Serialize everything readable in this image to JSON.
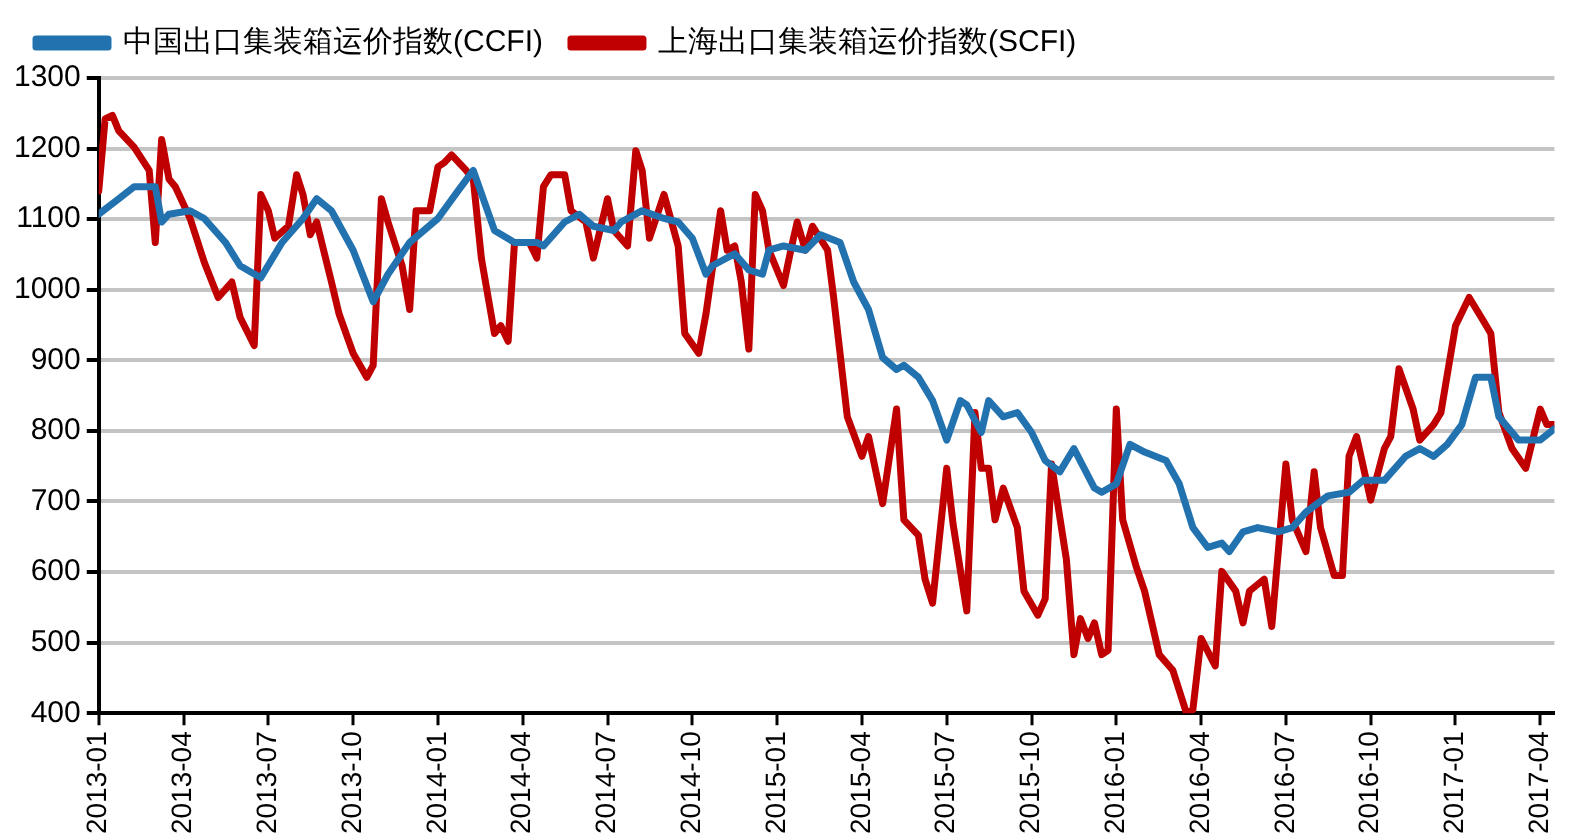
{
  "chart_data": {
    "type": "line",
    "xlim": [
      "2013-01",
      "2017-04-16"
    ],
    "ylim": [
      400,
      1300
    ],
    "xticks": [
      "2013-01",
      "2013-04",
      "2013-07",
      "2013-10",
      "2014-01",
      "2014-04",
      "2014-07",
      "2014-10",
      "2015-01",
      "2015-04",
      "2015-07",
      "2015-10",
      "2016-01",
      "2016-04",
      "2016-07",
      "2016-10",
      "2017-01",
      "2017-04"
    ],
    "yticks": [
      400,
      500,
      600,
      700,
      800,
      900,
      1000,
      1100,
      1200,
      1300
    ],
    "grid": "y",
    "legend": "top",
    "marker": "none",
    "line_style": "solid",
    "series": [
      {
        "name": "中国出口集装箱运价指数(CCFI)",
        "color": "#2372b0",
        "x": [
          "2013-01-01",
          "2013-01-23",
          "2013-02-08",
          "2013-03-01",
          "2013-03-08",
          "2013-03-16",
          "2013-04-08",
          "2013-04-23",
          "2013-05-16",
          "2013-06-01",
          "2013-06-23",
          "2013-07-16",
          "2013-08-08",
          "2013-08-23",
          "2013-09-08",
          "2013-10-01",
          "2013-10-23",
          "2013-11-08",
          "2013-12-01",
          "2014-01-01",
          "2014-01-23",
          "2014-02-08",
          "2014-03-01",
          "2014-03-23",
          "2014-04-16",
          "2014-04-23",
          "2014-05-16",
          "2014-06-01",
          "2014-06-16",
          "2014-07-08",
          "2014-07-16",
          "2014-08-08",
          "2014-09-01",
          "2014-09-16",
          "2014-10-01",
          "2014-10-16",
          "2014-10-23",
          "2014-11-16",
          "2014-12-01",
          "2014-12-16",
          "2014-12-23",
          "2015-01-08",
          "2015-02-01",
          "2015-02-16",
          "2015-03-08",
          "2015-03-23",
          "2015-04-08",
          "2015-04-23",
          "2015-05-08",
          "2015-05-16",
          "2015-06-01",
          "2015-06-16",
          "2015-07-01",
          "2015-07-16",
          "2015-07-23",
          "2015-08-08",
          "2015-08-16",
          "2015-09-01",
          "2015-09-16",
          "2015-10-01",
          "2015-10-16",
          "2015-11-01",
          "2015-11-16",
          "2015-12-08",
          "2015-12-16",
          "2016-01-01",
          "2016-01-16",
          "2016-02-01",
          "2016-02-23",
          "2016-03-08",
          "2016-03-23",
          "2016-04-08",
          "2016-04-23",
          "2016-05-01",
          "2016-05-16",
          "2016-06-01",
          "2016-06-23",
          "2016-07-08",
          "2016-07-23",
          "2016-08-16",
          "2016-09-08",
          "2016-09-23",
          "2016-10-16",
          "2016-11-08",
          "2016-11-23",
          "2016-12-08",
          "2016-12-23",
          "2017-01-08",
          "2017-01-23",
          "2017-02-08",
          "2017-02-16",
          "2017-03-08",
          "2017-04-01",
          "2017-04-16"
        ],
        "values": [
          1107,
          1129,
          1146,
          1146,
          1096,
          1107,
          1112,
          1101,
          1067,
          1034,
          1017,
          1067,
          1101,
          1129,
          1112,
          1056,
          983,
          1022,
          1067,
          1101,
          1140,
          1169,
          1084,
          1067,
          1067,
          1062,
          1096,
          1107,
          1090,
          1084,
          1096,
          1112,
          1101,
          1096,
          1073,
          1022,
          1034,
          1051,
          1028,
          1022,
          1056,
          1062,
          1056,
          1078,
          1067,
          1011,
          972,
          904,
          887,
          893,
          876,
          843,
          787,
          843,
          837,
          798,
          843,
          820,
          826,
          798,
          758,
          742,
          775,
          719,
          713,
          725,
          781,
          770,
          758,
          725,
          663,
          635,
          641,
          629,
          657,
          663,
          657,
          663,
          685,
          708,
          713,
          730,
          730,
          764,
          775,
          764,
          781,
          809,
          876,
          876,
          820,
          787,
          787,
          803
        ]
      },
      {
        "name": "上海出口集装箱运价指数(SCFI)",
        "color": "#c00000",
        "x": [
          "2013-01-01",
          "2013-01-08",
          "2013-01-16",
          "2013-01-23",
          "2013-02-08",
          "2013-02-23",
          "2013-03-01",
          "2013-03-08",
          "2013-03-16",
          "2013-03-23",
          "2013-04-08",
          "2013-04-23",
          "2013-05-08",
          "2013-05-23",
          "2013-06-01",
          "2013-06-16",
          "2013-06-23",
          "2013-07-01",
          "2013-07-08",
          "2013-07-23",
          "2013-08-01",
          "2013-08-08",
          "2013-08-16",
          "2013-08-23",
          "2013-09-08",
          "2013-09-16",
          "2013-10-01",
          "2013-10-16",
          "2013-10-23",
          "2013-11-01",
          "2013-11-08",
          "2013-11-23",
          "2013-12-01",
          "2013-12-08",
          "2013-12-23",
          "2014-01-01",
          "2014-01-08",
          "2014-01-16",
          "2014-02-01",
          "2014-02-08",
          "2014-02-16",
          "2014-03-01",
          "2014-03-08",
          "2014-03-16",
          "2014-03-23",
          "2014-04-08",
          "2014-04-16",
          "2014-04-23",
          "2014-05-01",
          "2014-05-16",
          "2014-05-23",
          "2014-06-08",
          "2014-06-16",
          "2014-07-01",
          "2014-07-08",
          "2014-07-23",
          "2014-08-01",
          "2014-08-08",
          "2014-08-16",
          "2014-09-01",
          "2014-09-16",
          "2014-09-23",
          "2014-10-08",
          "2014-10-16",
          "2014-11-01",
          "2014-11-08",
          "2014-11-16",
          "2014-11-23",
          "2014-12-01",
          "2014-12-08",
          "2014-12-16",
          "2014-12-23",
          "2015-01-08",
          "2015-01-16",
          "2015-01-23",
          "2015-02-01",
          "2015-02-08",
          "2015-02-23",
          "2015-03-01",
          "2015-03-16",
          "2015-04-01",
          "2015-04-08",
          "2015-04-23",
          "2015-05-08",
          "2015-05-16",
          "2015-06-01",
          "2015-06-08",
          "2015-06-16",
          "2015-07-01",
          "2015-07-08",
          "2015-07-23",
          "2015-08-01",
          "2015-08-08",
          "2015-08-16",
          "2015-08-23",
          "2015-09-01",
          "2015-09-16",
          "2015-09-23",
          "2015-10-08",
          "2015-10-16",
          "2015-10-23",
          "2015-11-08",
          "2015-11-16",
          "2015-11-23",
          "2015-12-01",
          "2015-12-08",
          "2015-12-16",
          "2015-12-23",
          "2016-01-01",
          "2016-01-08",
          "2016-01-23",
          "2016-02-01",
          "2016-02-16",
          "2016-03-01",
          "2016-03-16",
          "2016-03-23",
          "2016-04-01",
          "2016-04-16",
          "2016-04-23",
          "2016-05-08",
          "2016-05-16",
          "2016-05-23",
          "2016-06-08",
          "2016-06-16",
          "2016-07-01",
          "2016-07-08",
          "2016-07-23",
          "2016-08-01",
          "2016-08-08",
          "2016-08-23",
          "2016-09-01",
          "2016-09-08",
          "2016-09-16",
          "2016-10-01",
          "2016-10-16",
          "2016-10-23",
          "2016-11-01",
          "2016-11-16",
          "2016-11-23",
          "2016-12-08",
          "2016-12-16",
          "2017-01-01",
          "2017-01-16",
          "2017-02-01",
          "2017-02-08",
          "2017-02-16",
          "2017-03-01",
          "2017-03-16",
          "2017-04-01",
          "2017-04-08",
          "2017-04-16"
        ],
        "values": [
          1140,
          1242,
          1247,
          1225,
          1202,
          1169,
          1067,
          1213,
          1157,
          1146,
          1101,
          1039,
          989,
          1011,
          961,
          921,
          1135,
          1112,
          1073,
          1090,
          1163,
          1135,
          1078,
          1096,
          1011,
          966,
          910,
          876,
          893,
          1129,
          1096,
          1034,
          972,
          1112,
          1112,
          1174,
          1180,
          1191,
          1169,
          1157,
          1045,
          938,
          949,
          927,
          1067,
          1067,
          1045,
          1146,
          1163,
          1163,
          1112,
          1096,
          1045,
          1129,
          1084,
          1062,
          1197,
          1169,
          1073,
          1135,
          1062,
          938,
          910,
          966,
          1112,
          1056,
          1062,
          1011,
          916,
          1135,
          1112,
          1056,
          1006,
          1056,
          1096,
          1056,
          1090,
          1056,
          989,
          820,
          764,
          792,
          697,
          831,
          674,
          652,
          590,
          556,
          747,
          668,
          545,
          826,
          747,
          747,
          674,
          719,
          663,
          573,
          539,
          562,
          753,
          618,
          483,
          534,
          506,
          528,
          483,
          489,
          831,
          674,
          607,
          573,
          483,
          461,
          400,
          405,
          506,
          467,
          601,
          573,
          528,
          573,
          590,
          523,
          753,
          674,
          629,
          742,
          663,
          595,
          595,
          764,
          792,
          702,
          775,
          792,
          888,
          831,
          787,
          809,
          826,
          949,
          989,
          955,
          938,
          826,
          775,
          747,
          831,
          809,
          809
        ]
      }
    ]
  }
}
